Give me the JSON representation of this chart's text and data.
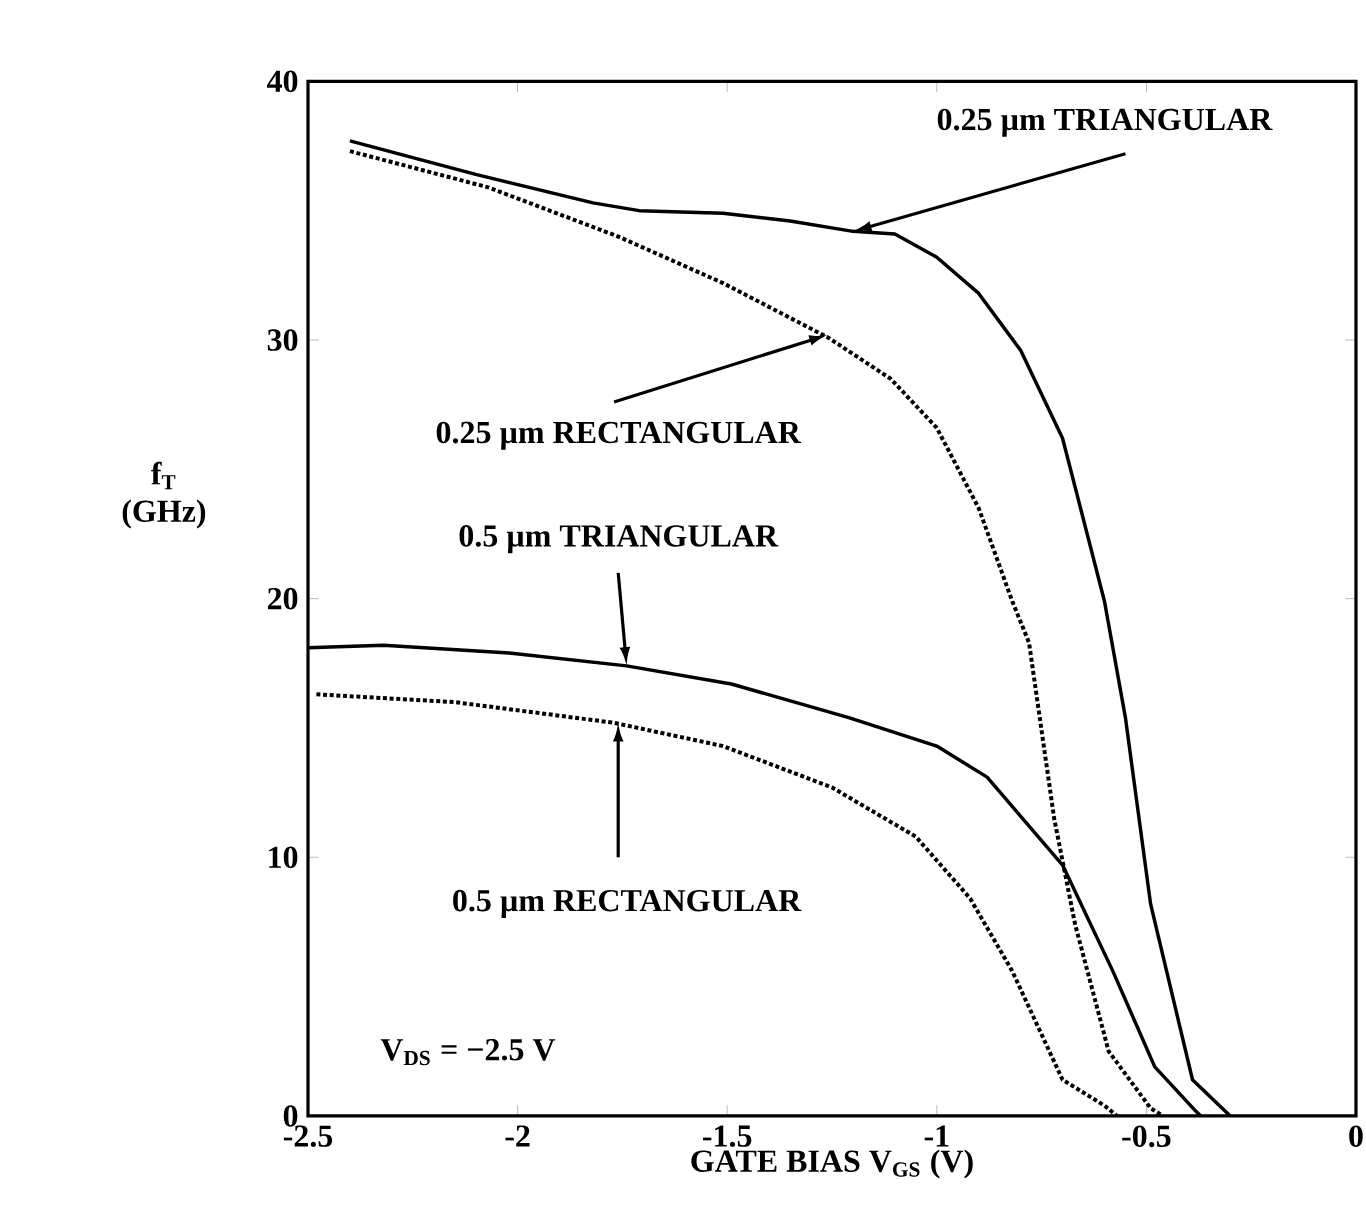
{
  "chart_data": {
    "type": "line",
    "xlabel": "GATE BIAS V$_{GS}$ (V)",
    "ylabel": "f$_{T}$ (GHz)",
    "series": [
      {
        "color": "#000000",
        "line_style": "solid",
        "x": [
          -2.4,
          -2.1,
          -1.82,
          -1.71,
          -1.51,
          -1.35,
          -1.2,
          -1.1,
          -1.0,
          -0.9,
          -0.8,
          -0.7,
          -0.6,
          -0.55,
          -0.49,
          -0.39,
          -0.3
        ],
        "values": [
          37.7,
          36.4,
          35.3,
          35.0,
          34.9,
          34.6,
          34.2,
          34.1,
          33.2,
          31.8,
          29.6,
          26.2,
          19.9,
          15.4,
          8.2,
          1.4,
          0
        ]
      },
      {
        "color": "#000000",
        "line_style": "dotted",
        "x": [
          -2.4,
          -2.07,
          -1.76,
          -1.51,
          -1.26,
          -1.11,
          -1.0,
          -0.9,
          -0.82,
          -0.78,
          -0.72,
          -0.67,
          -0.59,
          -0.49,
          -0.46
        ],
        "values": [
          37.3,
          35.9,
          34.0,
          32.2,
          30.1,
          28.5,
          26.6,
          23.5,
          19.9,
          18.3,
          11.5,
          7.4,
          2.5,
          0.3,
          0
        ]
      },
      {
        "color": "#000000",
        "line_style": "solid",
        "x": [
          -2.5,
          -2.32,
          -2.02,
          -1.74,
          -1.49,
          -1.21,
          -1.0,
          -0.88,
          -0.7,
          -0.58,
          -0.48,
          -0.38,
          -0.37
        ],
        "values": [
          18.1,
          18.2,
          17.9,
          17.4,
          16.7,
          15.4,
          14.3,
          13.1,
          9.7,
          5.6,
          1.9,
          0.15,
          0
        ]
      },
      {
        "color": "#000000",
        "line_style": "dotted",
        "x": [
          -2.48,
          -2.15,
          -1.77,
          -1.51,
          -1.25,
          -1.05,
          -0.92,
          -0.82,
          -0.7,
          -0.6,
          -0.57
        ],
        "values": [
          16.3,
          16.0,
          15.2,
          14.3,
          12.7,
          10.8,
          8.4,
          5.6,
          1.4,
          0.4,
          0
        ]
      }
    ],
    "xlim": [
      -2.5,
      0
    ],
    "ylim": [
      0,
      40
    ],
    "xticks": [
      {
        "value": -2.5,
        "label": "-2.5"
      },
      {
        "value": -2,
        "label": "-2"
      },
      {
        "value": -1.5,
        "label": "-1.5"
      },
      {
        "value": -1,
        "label": "-1"
      },
      {
        "value": -0.5,
        "label": "-0.5"
      },
      0
    ],
    "yticks": [
      0,
      10,
      20,
      30,
      40
    ],
    "annotations": [
      {
        "text": "0.25 µm TRIANGULAR",
        "x": -1.2,
        "y": 34.2
      },
      {
        "text": "0.25 µm RECTANGULAR",
        "x": -1.26,
        "y": 30.2
      },
      {
        "text": "0.5 µm TRIANGULAR",
        "x": -1.74,
        "y": 17.4
      },
      {
        "text": "0.5 µm RECTANGULAR",
        "x": -1.76,
        "y": 15.2
      },
      "V$_{DS}$ = −2.5 V"
    ]
  }
}
